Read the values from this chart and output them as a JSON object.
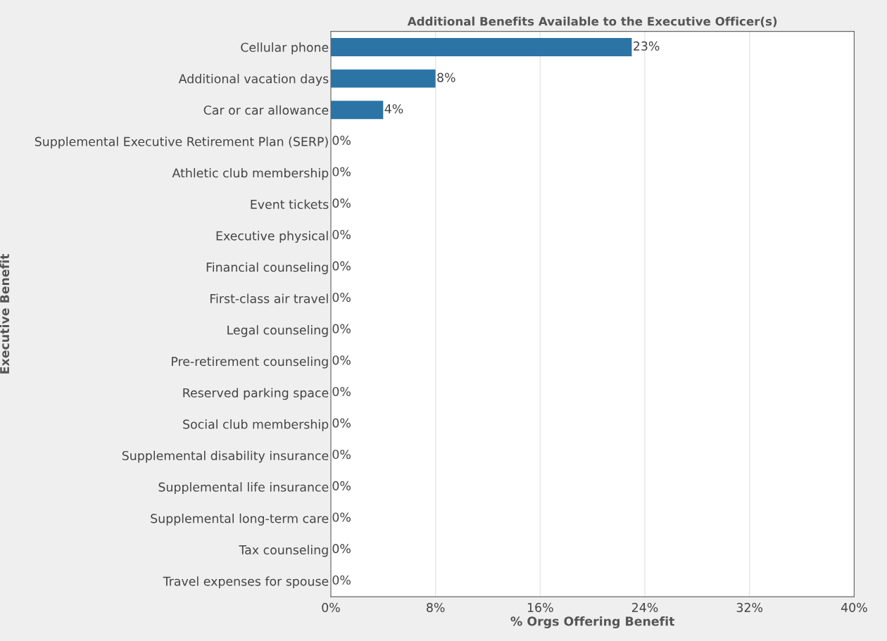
{
  "chart_data": {
    "type": "bar",
    "orientation": "horizontal",
    "title": "Additional Benefits Available to the Executive Officer(s)",
    "xlabel": "% Orgs Offering Benefit",
    "ylabel": "Executive Benefit",
    "categories": [
      "Cellular phone",
      "Additional vacation days",
      "Car or car allowance",
      "Supplemental Executive Retirement Plan (SERP)",
      "Athletic club membership",
      "Event tickets",
      "Executive physical",
      "Financial counseling",
      "First-class air travel",
      "Legal counseling",
      "Pre-retirement counseling",
      "Reserved parking space",
      "Social club membership",
      "Supplemental disability insurance",
      "Supplemental life insurance",
      "Supplemental long-term care",
      "Tax counseling",
      "Travel expenses for spouse"
    ],
    "values": [
      23,
      8,
      4,
      0,
      0,
      0,
      0,
      0,
      0,
      0,
      0,
      0,
      0,
      0,
      0,
      0,
      0,
      0
    ],
    "value_labels": [
      "23%",
      "8%",
      "4%",
      "0%",
      "0%",
      "0%",
      "0%",
      "0%",
      "0%",
      "0%",
      "0%",
      "0%",
      "0%",
      "0%",
      "0%",
      "0%",
      "0%",
      "0%"
    ],
    "color": "#2b74a5",
    "xlim": [
      0,
      40
    ],
    "xticks": [
      {
        "value": 0,
        "label": "0%"
      },
      {
        "value": 8,
        "label": "8%"
      },
      {
        "value": 16,
        "label": "16%"
      },
      {
        "value": 24,
        "label": "24%"
      },
      {
        "value": 32,
        "label": "32%"
      },
      {
        "value": 40,
        "label": "40%"
      }
    ],
    "grid": "x"
  }
}
